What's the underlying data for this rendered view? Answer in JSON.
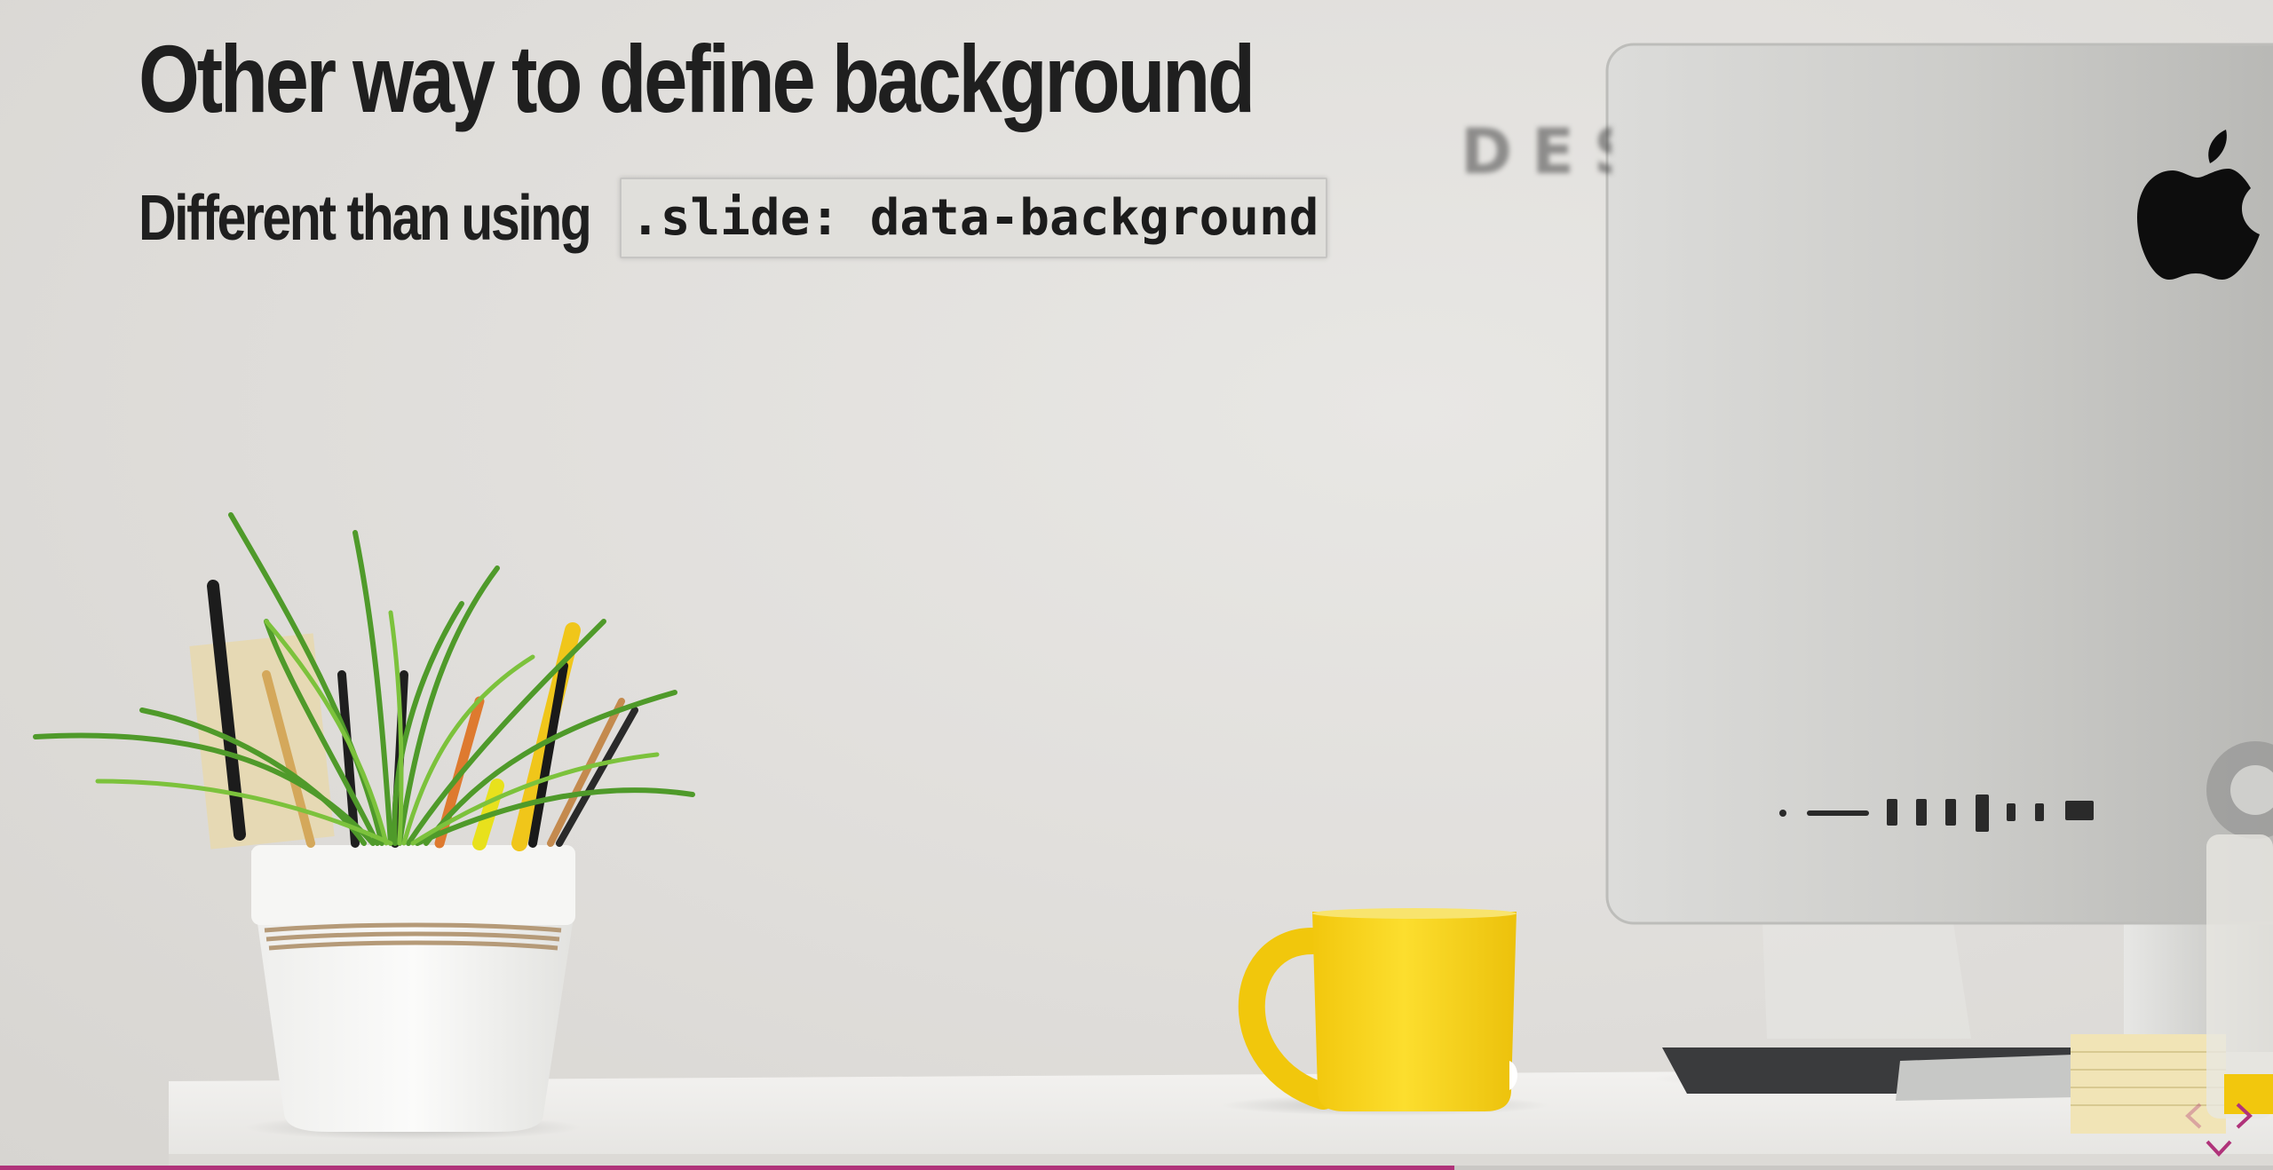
{
  "slide": {
    "title": "Other way to define background",
    "subtitle_text": "Different than using",
    "subtitle_code": ".slide: data-background"
  },
  "background_photo": {
    "blurred_wall_text": "DES"
  },
  "progress": {
    "fraction": 0.64,
    "color": "#b0337a"
  },
  "controls": {
    "left_icon": "chevron-left-icon",
    "right_icon": "chevron-right-icon",
    "down_icon": "chevron-down-icon",
    "enabled_color": "#b0337a",
    "disabled_color": "#b0337a"
  },
  "colors": {
    "title": "#1f1f1f",
    "wall": "#e1dfdc",
    "mug": "#f7d21e"
  }
}
